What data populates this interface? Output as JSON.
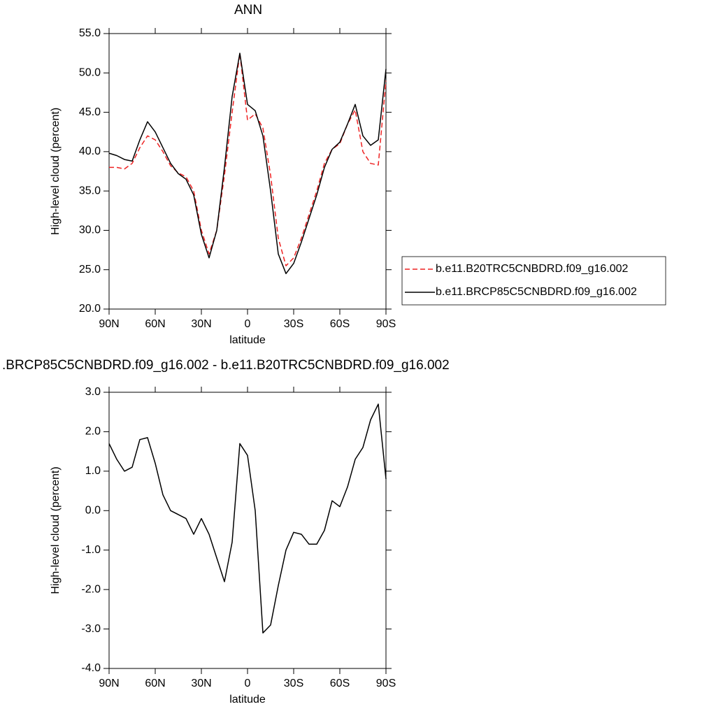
{
  "chart_data": [
    {
      "type": "line",
      "title": "ANN",
      "xlabel": "latitude",
      "ylabel": "High-level cloud (percent)",
      "x": [
        90,
        85,
        80,
        75,
        70,
        65,
        60,
        55,
        50,
        45,
        40,
        35,
        30,
        25,
        20,
        15,
        10,
        5,
        0,
        -5,
        -10,
        -15,
        -20,
        -25,
        -30,
        -35,
        -40,
        -45,
        -50,
        -55,
        -60,
        -65,
        -70,
        -75,
        -80,
        -85,
        -90
      ],
      "xlim": [
        90,
        -90
      ],
      "xticks": [
        {
          "value": 90,
          "label": "90N"
        },
        {
          "value": 60,
          "label": "60N"
        },
        {
          "value": 30,
          "label": "30N"
        },
        0,
        {
          "value": -30,
          "label": "30S"
        },
        {
          "value": -60,
          "label": "60S"
        },
        {
          "value": -90,
          "label": "90S"
        }
      ],
      "ylim": [
        20,
        55
      ],
      "yticks": [
        {
          "value": 20,
          "label": "20.0"
        },
        {
          "value": 25,
          "label": "25.0"
        },
        {
          "value": 30,
          "label": "30.0"
        },
        {
          "value": 35,
          "label": "35.0"
        },
        {
          "value": 40,
          "label": "40.0"
        },
        {
          "value": 45,
          "label": "45.0"
        },
        {
          "value": 50,
          "label": "50.0"
        },
        {
          "value": 55,
          "label": "55.0"
        }
      ],
      "legend": "right",
      "series": [
        {
          "name": "b.e11.B20TRC5CNBDRD.f09_g16.002",
          "color": "#ee2222",
          "dash": true,
          "values": [
            38,
            38,
            37.8,
            38.5,
            40.5,
            42,
            41.5,
            40,
            38.2,
            37.3,
            36.8,
            35,
            30,
            27,
            30,
            37,
            45,
            52.5,
            44,
            44.8,
            43,
            37,
            29,
            25.5,
            26.5,
            29,
            32,
            35,
            38.5,
            40.3,
            41,
            43.5,
            45.3,
            40,
            38.5,
            38.3,
            49
          ]
        },
        {
          "name": "b.e11.BRCP85C5CNBDRD.f09_g16.002",
          "color": "#000000",
          "dash": false,
          "values": [
            39.8,
            39.5,
            39,
            38.8,
            41.5,
            43.8,
            42.5,
            40.5,
            38.5,
            37.2,
            36.5,
            34.5,
            29.5,
            26.5,
            30,
            38,
            47,
            52.5,
            46,
            45.2,
            42,
            35,
            27,
            24.5,
            25.8,
            28.5,
            31.5,
            34.5,
            38,
            40.3,
            41.2,
            43.5,
            46,
            42,
            40.8,
            41.5,
            50.5
          ]
        }
      ]
    },
    {
      "type": "line",
      "title": ".BRCP85C5CNBDRD.f09_g16.002 - b.e11.B20TRC5CNBDRD.f09_g16.002",
      "xlabel": "latitude",
      "ylabel": "High-level cloud (percent)",
      "x": [
        90,
        85,
        80,
        75,
        70,
        65,
        60,
        55,
        50,
        45,
        40,
        35,
        30,
        25,
        20,
        15,
        10,
        5,
        0,
        -5,
        -10,
        -15,
        -20,
        -25,
        -30,
        -35,
        -40,
        -45,
        -50,
        -55,
        -60,
        -65,
        -70,
        -75,
        -80,
        -85,
        -90
      ],
      "xlim": [
        90,
        -90
      ],
      "xticks": [
        {
          "value": 90,
          "label": "90N"
        },
        {
          "value": 60,
          "label": "60N"
        },
        {
          "value": 30,
          "label": "30N"
        },
        0,
        {
          "value": -30,
          "label": "30S"
        },
        {
          "value": -60,
          "label": "60S"
        },
        {
          "value": -90,
          "label": "90S"
        }
      ],
      "ylim": [
        -4,
        3
      ],
      "yticks": [
        {
          "value": -4,
          "label": "-4.0"
        },
        {
          "value": -3,
          "label": "-3.0"
        },
        {
          "value": -2,
          "label": "-2.0"
        },
        {
          "value": -1,
          "label": "-1.0"
        },
        {
          "value": 0,
          "label": "0.0"
        },
        {
          "value": 1,
          "label": "1.0"
        },
        {
          "value": 2,
          "label": "2.0"
        },
        {
          "value": 3,
          "label": "3.0"
        }
      ],
      "series": [
        {
          "color": "#000000",
          "dash": false,
          "values": [
            1.7,
            1.3,
            1.0,
            1.1,
            1.8,
            1.85,
            1.2,
            0.4,
            0.0,
            -0.1,
            -0.2,
            -0.6,
            -0.2,
            -0.6,
            -1.2,
            -1.8,
            -0.8,
            1.7,
            1.4,
            0.0,
            -3.1,
            -2.9,
            -1.9,
            -1.0,
            -0.55,
            -0.6,
            -0.85,
            -0.85,
            -0.5,
            0.25,
            0.1,
            0.6,
            1.3,
            1.6,
            2.3,
            2.7,
            0.8
          ]
        }
      ]
    }
  ]
}
